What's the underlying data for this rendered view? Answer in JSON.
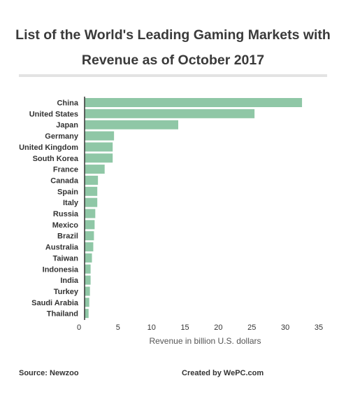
{
  "title_lines": [
    "List of the World's Leading Gaming Markets with",
    "Revenue as of October 2017"
  ],
  "footer": {
    "source_label": "Source:",
    "source_value": "Newzoo",
    "credit_label": "Created by",
    "credit_value": "WePC.com"
  },
  "colors": {
    "bar": "#8fc7a6",
    "axis": "#333333",
    "title_bar": "#e3e3e3"
  },
  "chart_data": {
    "type": "bar",
    "orientation": "horizontal",
    "title": "List of the World's Leading Gaming Markets with Revenue as of October 2017",
    "xlabel": "Revenue in billion U.S. dollars",
    "ylabel": "",
    "xlim": [
      0,
      35
    ],
    "xticks": [
      0,
      5,
      10,
      15,
      20,
      25,
      30,
      35
    ],
    "grid": false,
    "categories": [
      "China",
      "United States",
      "Japan",
      "Germany",
      "United Kingdom",
      "South Korea",
      "France",
      "Canada",
      "Spain",
      "Italy",
      "Russia",
      "Mexico",
      "Brazil",
      "Australia",
      "Taiwan",
      "Indonesia",
      "India",
      "Turkey",
      "Saudi Arabia",
      "Thailand"
    ],
    "values": [
      32.5,
      25.4,
      14.0,
      4.4,
      4.2,
      4.2,
      3.0,
      2.0,
      1.9,
      1.9,
      1.6,
      1.5,
      1.4,
      1.3,
      1.1,
      0.9,
      0.9,
      0.8,
      0.7,
      0.6
    ]
  }
}
